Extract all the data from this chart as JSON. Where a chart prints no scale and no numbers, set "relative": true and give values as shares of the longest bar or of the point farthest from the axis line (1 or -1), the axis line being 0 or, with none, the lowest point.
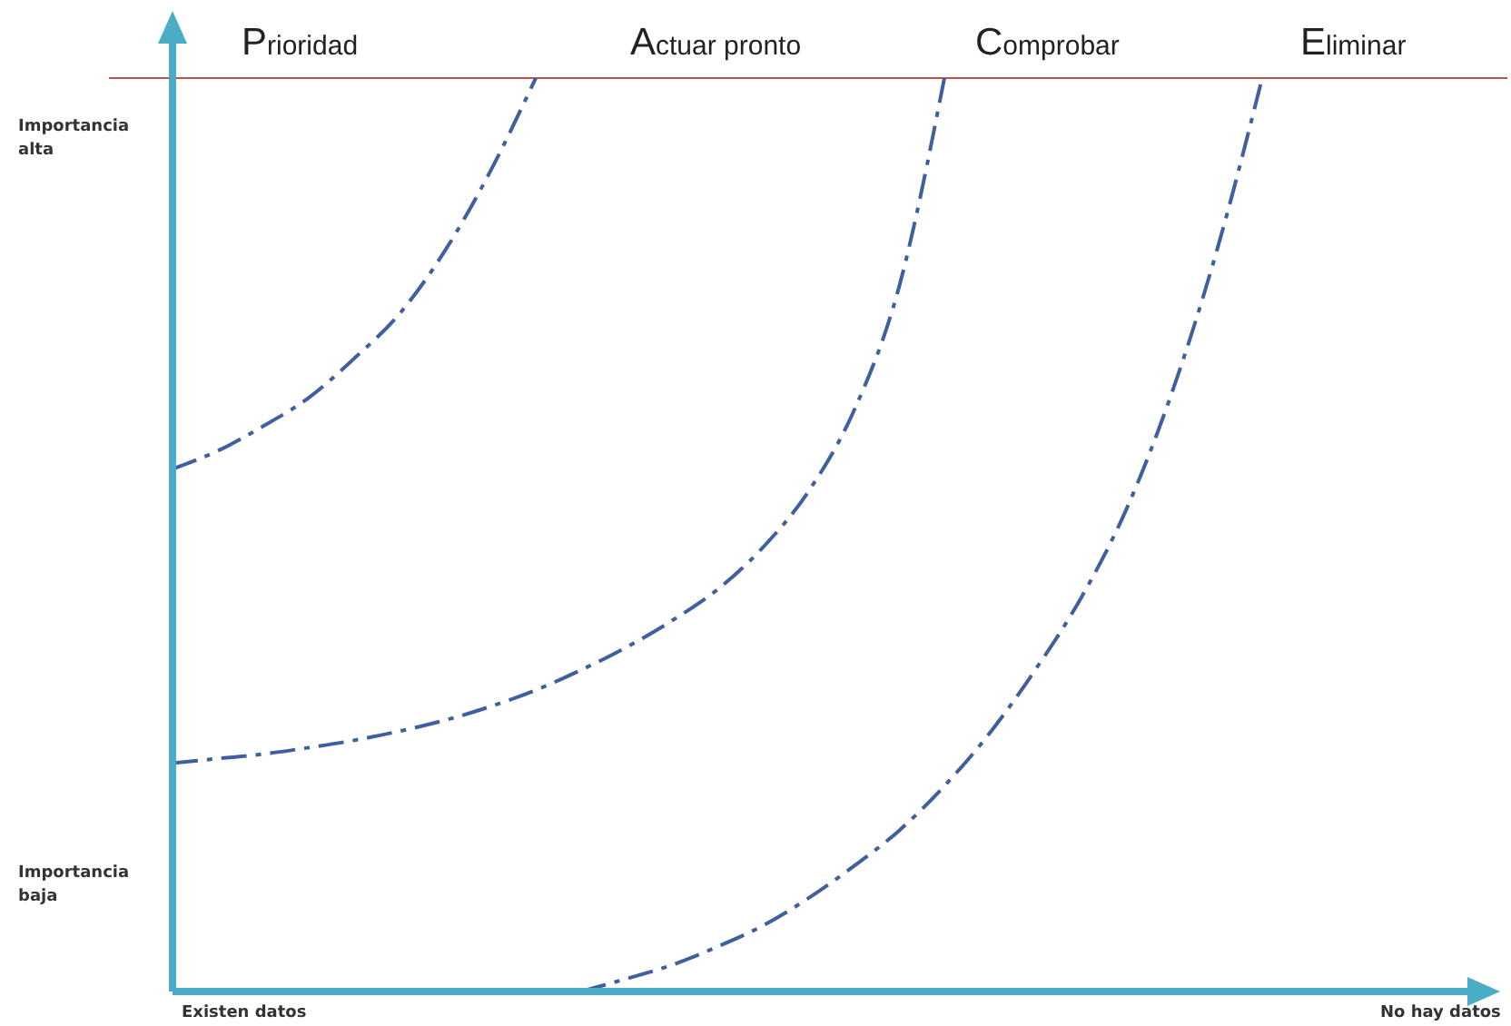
{
  "chart_data": {
    "type": "line",
    "relative": true,
    "line_style": "dashed",
    "categories": [
      null,
      null,
      null,
      null,
      null,
      null,
      null,
      null,
      null,
      null,
      null,
      null,
      null,
      null,
      null,
      null,
      null,
      null,
      null,
      null,
      null,
      null,
      null,
      null,
      null,
      null,
      null,
      null,
      null,
      null
    ],
    "series": [
      {
        "color": "#3f5f9f",
        "values": [
          0.572,
          0.592,
          0.619,
          0.65,
          0.693,
          0.742,
          0.811,
          0.898,
          1,
          null,
          null,
          null,
          null,
          null,
          null,
          null,
          null,
          null,
          null,
          null,
          null,
          null,
          null,
          null,
          null,
          null,
          null,
          null,
          null,
          null
        ]
      },
      {
        "color": "#3f5f9f",
        "values": [
          0.25,
          0.255,
          0.26,
          0.267,
          0.275,
          0.285,
          0.297,
          0.312,
          0.33,
          0.352,
          0.377,
          0.406,
          0.44,
          0.486,
          0.547,
          0.635,
          0.771,
          1,
          null,
          null,
          null,
          null,
          null,
          null,
          null,
          null,
          null,
          null,
          null,
          null
        ]
      },
      {
        "color": "#3f5f9f",
        "values": [
          null,
          null,
          null,
          null,
          null,
          null,
          null,
          null,
          null,
          0,
          0.014,
          0.029,
          0.049,
          0.072,
          0.102,
          0.137,
          0.176,
          0.225,
          0.283,
          0.352,
          0.43,
          0.527,
          0.654,
          0.811,
          1,
          null,
          null,
          null,
          null,
          null
        ]
      }
    ],
    "ref_lines": [
      {
        "axis": "y",
        "value": 1,
        "color": "#c0504d"
      }
    ],
    "annotations": [
      "Prioridad",
      "Actuar pronto",
      "Comprobar",
      "Eliminar",
      "Importancia alta",
      "Importancia baja",
      "Existen datos",
      "No hay datos"
    ]
  }
}
